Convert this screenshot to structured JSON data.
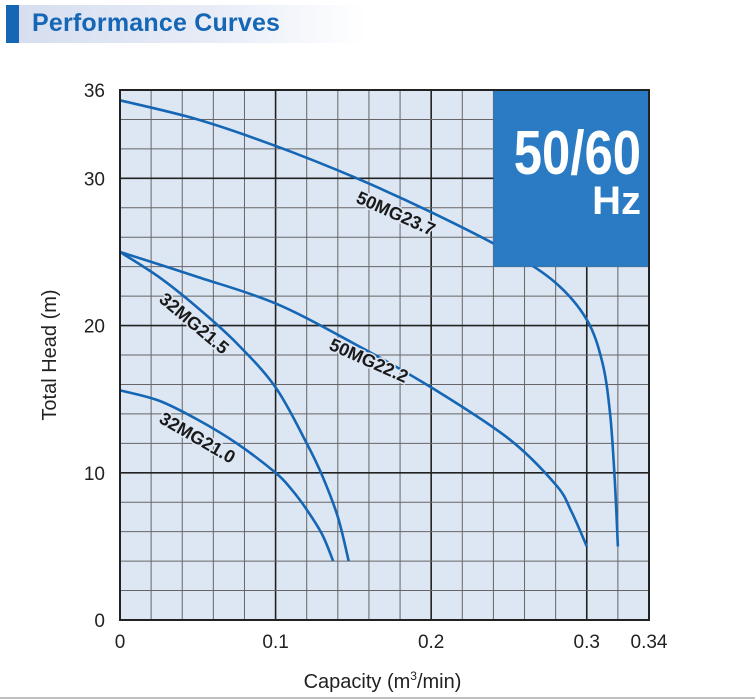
{
  "header": {
    "title": "Performance Curves"
  },
  "badge": {
    "frequency": "50/60",
    "unit": "Hz"
  },
  "colors": {
    "accent": "#1566b4",
    "plot_bg": "#dde6f3",
    "badge_bg": "#2a7bc3",
    "curve": "#1566b4"
  },
  "chart_data": {
    "type": "line",
    "title": "Performance Curves",
    "xlabel": "Capacity (m³/min)",
    "xlabel_main": "Capacity (m",
    "xlabel_sup": "3",
    "xlabel_tail": "/min)",
    "ylabel": "Total Head (m)",
    "xlim": [
      0,
      0.34
    ],
    "ylim": [
      0,
      36
    ],
    "x_ticks": [
      0,
      0.1,
      0.2,
      0.3,
      0.34
    ],
    "x_tick_labels": [
      "0",
      "0.1",
      "0.2",
      "0.3",
      "0.34"
    ],
    "y_ticks": [
      0,
      10,
      20,
      30,
      36
    ],
    "y_tick_labels": [
      "0",
      "10",
      "20",
      "30",
      "36"
    ],
    "grid": true,
    "x_minor_step": 0.02,
    "y_minor_step": 2,
    "series": [
      {
        "name": "50MG23.7",
        "label": "50MG23.7",
        "x": [
          0,
          0.05,
          0.1,
          0.15,
          0.2,
          0.25,
          0.28,
          0.3,
          0.31,
          0.315,
          0.318,
          0.32
        ],
        "y": [
          35.3,
          34.0,
          32.2,
          30.1,
          27.7,
          25.0,
          22.9,
          20.4,
          17.5,
          14.0,
          9.5,
          5.0
        ]
      },
      {
        "name": "50MG22.2",
        "label": "50MG22.2",
        "x": [
          0,
          0.05,
          0.1,
          0.15,
          0.2,
          0.25,
          0.28,
          0.29,
          0.3
        ],
        "y": [
          25.0,
          23.3,
          21.5,
          18.8,
          15.8,
          12.3,
          9.2,
          7.4,
          5.0
        ]
      },
      {
        "name": "32MG21.5",
        "label": "32MG21.5",
        "x": [
          0,
          0.025,
          0.05,
          0.075,
          0.1,
          0.12,
          0.13,
          0.14,
          0.147
        ],
        "y": [
          25.0,
          23.3,
          21.2,
          18.8,
          15.8,
          12.0,
          9.8,
          7.0,
          4.0
        ]
      },
      {
        "name": "32MG21.0",
        "label": "32MG21.0",
        "x": [
          0,
          0.025,
          0.05,
          0.075,
          0.1,
          0.11,
          0.12,
          0.13,
          0.137
        ],
        "y": [
          15.6,
          14.9,
          13.6,
          12.0,
          10.0,
          8.9,
          7.5,
          5.8,
          4.0
        ]
      }
    ]
  }
}
